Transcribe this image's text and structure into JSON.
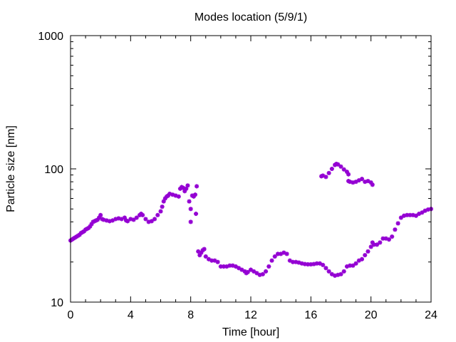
{
  "chart_data": {
    "type": "scatter",
    "title": "Modes location (5/9/1)",
    "xlabel": "Time [hour]",
    "ylabel": "Particle size [nm]",
    "xlim": [
      0,
      24
    ],
    "ylim": [
      10,
      1000
    ],
    "yscale": "log",
    "x_ticks": [
      0,
      4,
      8,
      12,
      16,
      20,
      24
    ],
    "x_tick_labels": [
      "0",
      "4",
      "8",
      "12",
      "16",
      "20",
      "24"
    ],
    "y_ticks": [
      10,
      100,
      1000
    ],
    "y_tick_labels": [
      "10",
      "100",
      "1000"
    ],
    "grid": false,
    "legend": null,
    "marker_color": "#9400d3",
    "series": [
      {
        "points": [
          [
            0.0,
            29
          ],
          [
            0.1,
            29.5
          ],
          [
            0.2,
            30
          ],
          [
            0.3,
            30.5
          ],
          [
            0.4,
            31
          ],
          [
            0.5,
            31.5
          ],
          [
            0.6,
            32
          ],
          [
            0.7,
            33
          ],
          [
            0.8,
            33.5
          ],
          [
            0.9,
            34
          ],
          [
            1.0,
            35
          ],
          [
            1.1,
            35.5
          ],
          [
            1.2,
            36
          ],
          [
            1.3,
            37
          ],
          [
            1.4,
            38.5
          ],
          [
            1.5,
            40
          ],
          [
            1.6,
            40.5
          ],
          [
            1.7,
            41
          ],
          [
            1.8,
            41.5
          ],
          [
            1.9,
            43
          ],
          [
            2.0,
            45
          ],
          [
            2.1,
            42
          ],
          [
            2.2,
            41.5
          ],
          [
            2.4,
            41
          ],
          [
            2.6,
            40.5
          ],
          [
            2.8,
            41
          ],
          [
            3.0,
            42
          ],
          [
            3.2,
            42.5
          ],
          [
            3.4,
            42
          ],
          [
            3.6,
            43
          ],
          [
            3.7,
            41
          ],
          [
            3.8,
            40.5
          ],
          [
            4.0,
            42
          ],
          [
            4.2,
            41.5
          ],
          [
            4.4,
            43
          ],
          [
            4.6,
            45
          ],
          [
            4.7,
            46
          ],
          [
            4.8,
            45
          ],
          [
            5.0,
            42
          ],
          [
            5.2,
            40
          ],
          [
            5.4,
            40.5
          ],
          [
            5.6,
            42
          ],
          [
            5.8,
            45
          ],
          [
            6.0,
            48
          ],
          [
            6.1,
            52
          ],
          [
            6.2,
            57
          ],
          [
            6.3,
            60
          ],
          [
            6.4,
            62
          ],
          [
            6.5,
            63
          ],
          [
            6.6,
            65
          ],
          [
            6.8,
            64
          ],
          [
            7.0,
            63
          ],
          [
            7.2,
            62
          ],
          [
            7.3,
            71
          ],
          [
            7.4,
            73
          ],
          [
            7.5,
            72
          ],
          [
            7.6,
            68
          ],
          [
            7.7,
            71
          ],
          [
            7.8,
            75
          ],
          [
            7.9,
            57
          ],
          [
            8.0,
            40
          ],
          [
            8.0,
            50
          ],
          [
            8.1,
            63
          ],
          [
            8.2,
            62
          ],
          [
            8.3,
            64
          ],
          [
            8.35,
            46
          ],
          [
            8.4,
            74
          ],
          [
            8.5,
            24
          ],
          [
            8.6,
            22.5
          ],
          [
            8.7,
            23.5
          ],
          [
            8.8,
            24.5
          ],
          [
            8.9,
            25
          ],
          [
            9.0,
            22
          ],
          [
            9.2,
            21
          ],
          [
            9.4,
            20.5
          ],
          [
            9.6,
            20.5
          ],
          [
            9.8,
            20
          ],
          [
            10.0,
            18.5
          ],
          [
            10.2,
            18.5
          ],
          [
            10.4,
            18.5
          ],
          [
            10.6,
            18.8
          ],
          [
            10.8,
            18.8
          ],
          [
            11.0,
            18.5
          ],
          [
            11.2,
            18
          ],
          [
            11.4,
            17.5
          ],
          [
            11.6,
            17
          ],
          [
            11.7,
            16.5
          ],
          [
            11.8,
            16.8
          ],
          [
            12.0,
            17.5
          ],
          [
            12.2,
            17
          ],
          [
            12.4,
            16.5
          ],
          [
            12.6,
            16
          ],
          [
            12.8,
            16.2
          ],
          [
            13.0,
            17
          ],
          [
            13.2,
            18.5
          ],
          [
            13.4,
            20.5
          ],
          [
            13.6,
            22
          ],
          [
            13.8,
            23
          ],
          [
            14.0,
            23
          ],
          [
            14.2,
            23.5
          ],
          [
            14.4,
            23
          ],
          [
            14.6,
            20.5
          ],
          [
            14.8,
            20
          ],
          [
            15.0,
            20
          ],
          [
            15.2,
            19.8
          ],
          [
            15.4,
            19.5
          ],
          [
            15.6,
            19.3
          ],
          [
            15.8,
            19.2
          ],
          [
            16.0,
            19.2
          ],
          [
            16.2,
            19.3
          ],
          [
            16.4,
            19.5
          ],
          [
            16.6,
            19.5
          ],
          [
            16.8,
            19
          ],
          [
            17.0,
            18
          ],
          [
            17.2,
            17
          ],
          [
            17.4,
            16.2
          ],
          [
            17.6,
            15.8
          ],
          [
            17.8,
            16
          ],
          [
            18.0,
            16.2
          ],
          [
            18.2,
            17
          ],
          [
            18.4,
            18.5
          ],
          [
            18.6,
            18.8
          ],
          [
            18.8,
            18.8
          ],
          [
            19.0,
            19.5
          ],
          [
            19.2,
            20.5
          ],
          [
            19.4,
            21
          ],
          [
            19.6,
            22.5
          ],
          [
            19.8,
            24
          ],
          [
            20.0,
            26
          ],
          [
            20.1,
            28
          ],
          [
            20.2,
            27
          ],
          [
            20.4,
            27
          ],
          [
            20.6,
            28
          ],
          [
            20.8,
            30
          ],
          [
            21.0,
            30
          ],
          [
            21.2,
            29.5
          ],
          [
            21.4,
            31
          ],
          [
            21.6,
            35
          ],
          [
            21.8,
            39
          ],
          [
            22.0,
            43
          ],
          [
            22.2,
            44.5
          ],
          [
            22.4,
            45
          ],
          [
            22.6,
            45
          ],
          [
            22.8,
            45
          ],
          [
            23.0,
            44.5
          ],
          [
            23.2,
            46
          ],
          [
            23.4,
            47
          ],
          [
            23.6,
            48.5
          ],
          [
            23.8,
            49.5
          ],
          [
            24.0,
            50
          ]
        ]
      },
      {
        "points": [
          [
            16.7,
            88
          ],
          [
            16.8,
            89
          ],
          [
            17.0,
            87
          ],
          [
            17.2,
            93
          ],
          [
            17.4,
            100
          ],
          [
            17.6,
            107
          ],
          [
            17.7,
            109
          ],
          [
            17.8,
            108
          ],
          [
            18.0,
            104
          ],
          [
            18.2,
            99
          ],
          [
            18.4,
            95
          ],
          [
            18.5,
            91
          ],
          [
            18.5,
            81
          ],
          [
            18.6,
            80
          ],
          [
            18.8,
            79
          ],
          [
            19.0,
            80
          ],
          [
            19.2,
            82
          ],
          [
            19.4,
            84
          ],
          [
            19.6,
            80
          ],
          [
            19.8,
            81
          ],
          [
            20.0,
            79
          ],
          [
            20.1,
            76
          ]
        ]
      }
    ]
  }
}
